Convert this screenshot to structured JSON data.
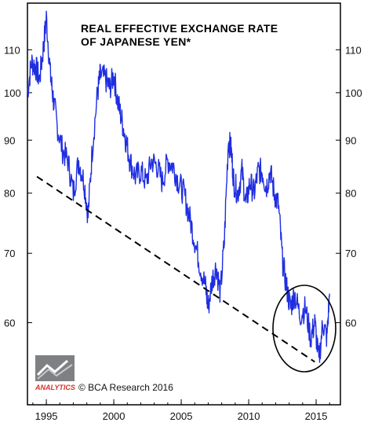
{
  "chart_data": {
    "type": "line",
    "title": [
      "REAL EFFECTIVE EXCHANGE RATE",
      "OF JAPANESE YEN*"
    ],
    "xlabel": "",
    "ylabel": "",
    "y_scale": "log",
    "xlim": [
      1993.6,
      2016.8
    ],
    "ylim": [
      50,
      122
    ],
    "x_ticks": [
      "1995",
      "2000",
      "2005",
      "2010",
      "2015"
    ],
    "y_ticks_left": [
      "110",
      "100",
      "90",
      "80",
      "70",
      "60"
    ],
    "y_ticks_right": [
      "110",
      "100",
      "90",
      "80",
      "70",
      "60"
    ],
    "grid": false,
    "series": [
      {
        "color": "#1f2ee0",
        "x": [
          1993.6,
          1993.9,
          1994.2,
          1994.5,
          1994.8,
          1995.0,
          1995.3,
          1995.5,
          1995.8,
          1996.2,
          1996.6,
          1997.0,
          1997.4,
          1997.8,
          1998.1,
          1998.4,
          1998.8,
          1999.0,
          1999.4,
          1999.7,
          2000.0,
          2000.3,
          2000.6,
          2000.9,
          2001.2,
          2001.6,
          2002.0,
          2002.4,
          2002.8,
          2003.2,
          2003.6,
          2004.0,
          2004.4,
          2004.8,
          2005.2,
          2005.6,
          2006.0,
          2006.4,
          2006.8,
          2007.0,
          2007.3,
          2007.6,
          2007.9,
          2008.2,
          2008.5,
          2008.7,
          2008.9,
          2009.2,
          2009.5,
          2009.8,
          2010.1,
          2010.4,
          2010.7,
          2011.0,
          2011.3,
          2011.6,
          2011.9,
          2012.2,
          2012.5,
          2012.8,
          2013.1,
          2013.4,
          2013.8,
          2014.2,
          2014.6,
          2014.9,
          2015.2,
          2015.5,
          2015.8,
          2016.0
        ],
        "values": [
          100,
          107,
          106,
          103,
          111,
          118,
          104,
          99,
          93,
          88,
          86,
          80,
          86,
          82,
          76,
          88,
          100,
          104,
          103,
          101,
          104,
          98,
          94,
          90,
          86,
          83,
          84,
          82,
          86,
          85,
          82,
          86,
          85,
          82,
          80,
          76,
          72,
          68,
          65,
          62,
          66,
          68,
          64,
          72,
          90,
          88,
          82,
          80,
          84,
          78,
          82,
          80,
          84,
          84,
          81,
          84,
          80,
          78,
          69,
          65,
          62,
          64,
          61,
          62,
          58,
          60,
          55,
          60,
          58,
          64
        ]
      }
    ],
    "trendline": {
      "style": "dashed",
      "color": "#000000",
      "x": [
        1994.3,
        2014.9
      ],
      "values": [
        83,
        55
      ]
    },
    "annotations": [
      "ellipse around 2013–2016 lows"
    ],
    "credit": "© BCA Research 2016",
    "logo_text": "ANALYTICS"
  }
}
